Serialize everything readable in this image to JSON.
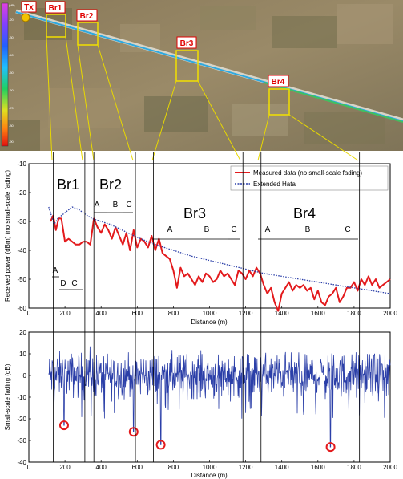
{
  "aerial": {
    "scale_ticks": [
      "-20",
      "-30",
      "-40",
      "-50",
      "-60",
      "-70",
      "-80",
      "-90"
    ],
    "scale_unit": "(dB)",
    "labels": [
      {
        "id": "tx",
        "text": "Tx"
      },
      {
        "id": "br1",
        "text": "Br1"
      },
      {
        "id": "br2",
        "text": "Br2"
      },
      {
        "id": "br3",
        "text": "Br3"
      },
      {
        "id": "br4",
        "text": "Br4"
      }
    ],
    "label_color": "#e00000"
  },
  "chart_data": [
    {
      "type": "line",
      "ylabel": "Received power (dBm) (no small-scale fading)",
      "xlabel": "Distance (m)",
      "xlim": [
        0,
        2000
      ],
      "ylim": [
        -60,
        -10
      ],
      "xticks": [
        "0",
        "200",
        "400",
        "600",
        "800",
        "1000",
        "1200",
        "1400",
        "1600",
        "1800",
        "2000"
      ],
      "yticks": [
        "-10",
        "-20",
        "-30",
        "-40",
        "-50",
        "-60"
      ],
      "grid": false,
      "legend_position": "top-right",
      "bridge_labels": [
        "Br1",
        "Br2",
        "Br3",
        "Br4"
      ],
      "segment_labels": {
        "br1": [
          "A",
          "D",
          "C"
        ],
        "br2": [
          "A",
          "B",
          "C"
        ],
        "br3": [
          "A",
          "B",
          "C"
        ],
        "br4": [
          "A",
          "B",
          "C"
        ]
      },
      "series": [
        {
          "name": "Measured data (no small-scale fading)",
          "color": "#e31a1c",
          "style": "solid",
          "x": [
            120,
            135,
            150,
            165,
            180,
            200,
            220,
            240,
            260,
            280,
            300,
            320,
            340,
            360,
            380,
            400,
            420,
            440,
            460,
            480,
            500,
            520,
            540,
            560,
            580,
            600,
            620,
            640,
            660,
            680,
            700,
            720,
            740,
            760,
            780,
            800,
            820,
            840,
            860,
            880,
            900,
            920,
            940,
            960,
            980,
            1000,
            1020,
            1040,
            1060,
            1080,
            1100,
            1120,
            1140,
            1160,
            1180,
            1200,
            1220,
            1240,
            1260,
            1280,
            1300,
            1320,
            1340,
            1360,
            1380,
            1400,
            1420,
            1440,
            1460,
            1480,
            1500,
            1520,
            1540,
            1560,
            1580,
            1600,
            1620,
            1640,
            1660,
            1680,
            1700,
            1720,
            1740,
            1760,
            1780,
            1800,
            1820,
            1840,
            1860,
            1880,
            1900,
            1920,
            1940,
            1960,
            1980,
            2000
          ],
          "values": [
            -30,
            -28,
            -33,
            -29,
            -29,
            -37,
            -36,
            -37,
            -38,
            -38,
            -37,
            -37,
            -38,
            -29,
            -32,
            -34,
            -31,
            -33,
            -36,
            -32,
            -35,
            -38,
            -34,
            -40,
            -33,
            -39,
            -36,
            -37,
            -39,
            -35,
            -40,
            -36,
            -41,
            -42,
            -43,
            -47,
            -53,
            -46,
            -49,
            -48,
            -50,
            -52,
            -49,
            -51,
            -48,
            -49,
            -51,
            -50,
            -47,
            -49,
            -48,
            -50,
            -52,
            -47,
            -48,
            -50,
            -47,
            -49,
            -46,
            -48,
            -52,
            -55,
            -53,
            -58,
            -61,
            -55,
            -53,
            -51,
            -54,
            -52,
            -53,
            -52,
            -54,
            -53,
            -57,
            -54,
            -58,
            -59,
            -56,
            -55,
            -53,
            -58,
            -56,
            -53,
            -53,
            -51,
            -54,
            -50,
            -52,
            -49,
            -52,
            -50,
            -53,
            -52,
            -51,
            -50
          ]
        },
        {
          "name": "Extended Hata",
          "color": "#2b3fa8",
          "style": "dotted",
          "x": [
            110,
            125,
            140,
            160,
            180,
            200,
            220,
            240,
            260,
            280,
            300,
            350,
            400,
            450,
            500,
            600,
            700,
            800,
            900,
            1000,
            1100,
            1200,
            1300,
            1400,
            1500,
            1600,
            1700,
            1800,
            1900,
            2000
          ],
          "values": [
            -25,
            -28,
            -31,
            -29,
            -28,
            -27,
            -26,
            -25,
            -25.5,
            -26,
            -27,
            -29,
            -30,
            -31,
            -32.5,
            -35.5,
            -38,
            -40,
            -42,
            -43.5,
            -45,
            -46.5,
            -48,
            -49,
            -50,
            -51,
            -52,
            -53,
            -54,
            -55
          ]
        }
      ]
    },
    {
      "type": "line",
      "ylabel": "Small-scale fading (dB)",
      "xlabel": "Distance (m)",
      "xlim": [
        0,
        2000
      ],
      "ylim": [
        -40,
        20
      ],
      "xticks": [
        "0",
        "200",
        "400",
        "600",
        "800",
        "1000",
        "1200",
        "1400",
        "1600",
        "1800",
        "2000"
      ],
      "yticks": [
        "20",
        "10",
        "0",
        "-10",
        "-20",
        "-30",
        "-40"
      ],
      "grid": false,
      "series": [
        {
          "color": "#2b3fa8",
          "style": "solid",
          "x_range": [
            110,
            2000
          ],
          "typical_range": [
            -15,
            15
          ],
          "deep_fades": [
            {
              "x": 195,
              "y": -23
            },
            {
              "x": 580,
              "y": -26
            },
            {
              "x": 730,
              "y": -32
            },
            {
              "x": 1670,
              "y": -33
            }
          ]
        }
      ],
      "marker_color": "#e31a1c"
    }
  ]
}
